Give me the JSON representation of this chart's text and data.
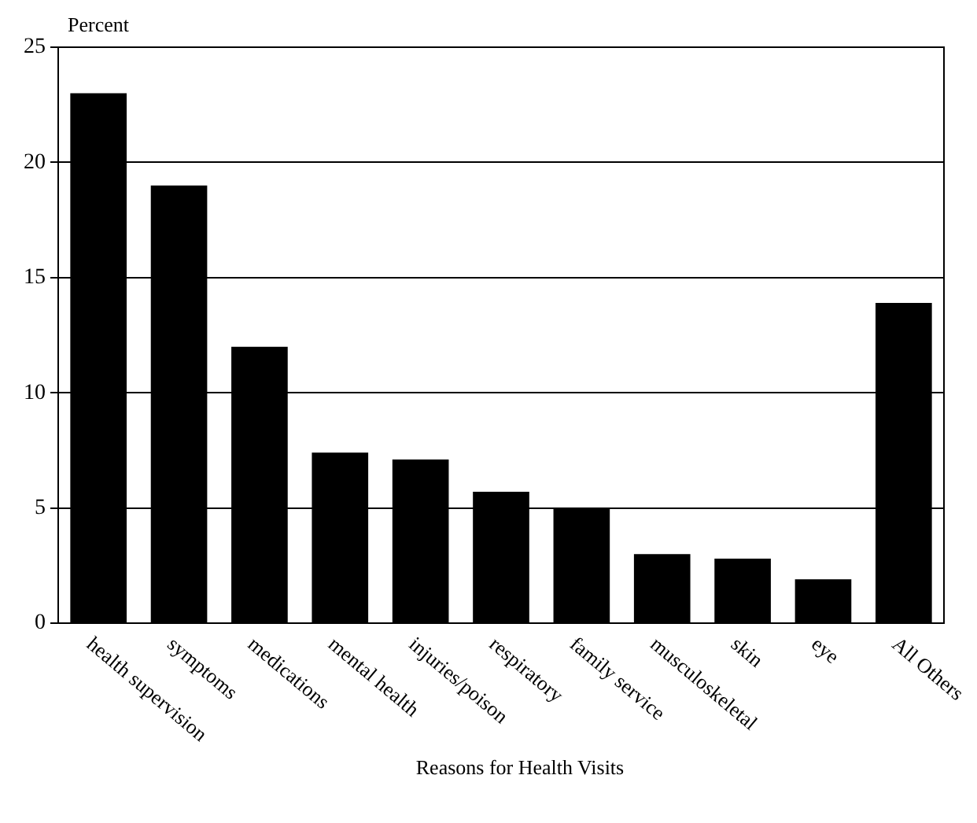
{
  "chart_data": {
    "type": "bar",
    "ylabel": "Percent",
    "xlabel": "Reasons for Health Visits",
    "categories": [
      "health supervision",
      "symptoms",
      "medications",
      "mental health",
      "injuries/poison",
      "respiratory",
      "family service",
      "musculoskeletal",
      "skin",
      "eye",
      "All Others"
    ],
    "values": [
      23,
      19,
      12,
      7.4,
      7.1,
      5.7,
      5.0,
      3.0,
      2.8,
      1.9,
      13.9
    ],
    "color": "#000000",
    "ylim": [
      0,
      25
    ],
    "yticks": [
      0,
      5,
      10,
      15,
      20,
      25
    ],
    "grid": "y",
    "legend": false
  }
}
